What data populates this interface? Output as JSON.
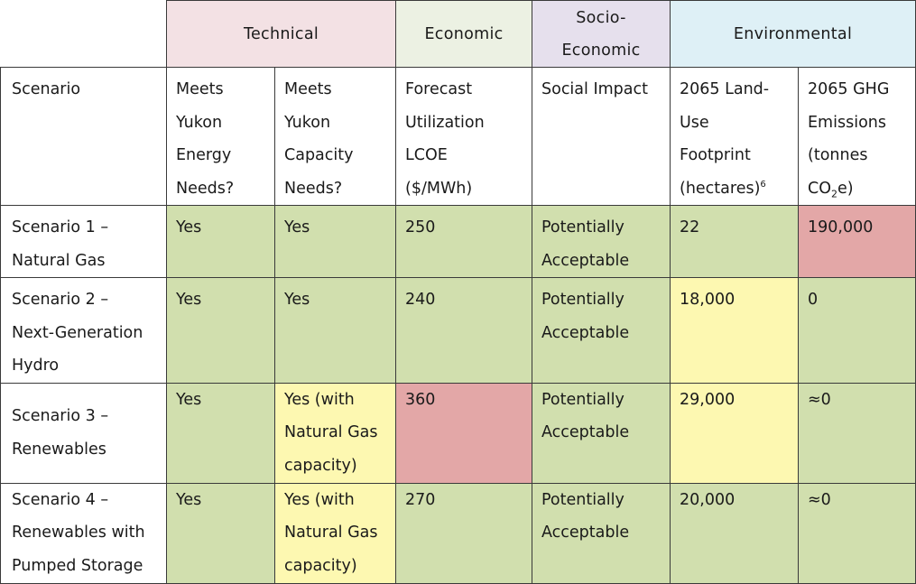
{
  "categories": {
    "technical": "Technical",
    "economic": "Economic",
    "socio_line1": "Socio-",
    "socio_line2": "Economic",
    "environmental": "Environmental"
  },
  "columns": {
    "scenario": "Scenario",
    "energy": [
      "Meets",
      "Yukon",
      "Energy",
      "Needs?"
    ],
    "capacity": [
      "Meets",
      "Yukon",
      "Capacity",
      "Needs?"
    ],
    "lcoe": [
      "Forecast",
      "Utilization",
      "LCOE",
      "($/MWh)"
    ],
    "social": "Social Impact",
    "land": [
      "2065 Land-",
      "Use",
      "Footprint",
      "(hectares)"
    ],
    "land_sup": "6",
    "ghg": [
      "2065 GHG",
      "Emissions",
      "(tonnes"
    ],
    "ghg_co": "CO",
    "ghg_sub": "2",
    "ghg_tail": "e)"
  },
  "rows": [
    {
      "scenario": [
        "Scenario 1 –",
        "Natural Gas"
      ],
      "energy": "Yes",
      "capacity": [
        "Yes"
      ],
      "lcoe": "250",
      "social": [
        "Potentially",
        "Acceptable"
      ],
      "land": "22",
      "ghg": "190,000"
    },
    {
      "scenario": [
        "Scenario 2 –",
        "Next-Generation",
        "Hydro"
      ],
      "energy": "Yes",
      "capacity": [
        "Yes"
      ],
      "lcoe": "240",
      "social": [
        "Potentially",
        "Acceptable"
      ],
      "land": "18,000",
      "ghg": "0"
    },
    {
      "scenario": [
        "Scenario 3 –",
        "Renewables"
      ],
      "energy": "Yes",
      "capacity": [
        "Yes (with",
        "Natural Gas",
        "capacity)"
      ],
      "lcoe": "360",
      "social": [
        "Potentially",
        "Acceptable"
      ],
      "land": "29,000",
      "ghg": "≈0"
    },
    {
      "scenario": [
        "Scenario 4 –",
        "Renewables with",
        "Pumped Storage"
      ],
      "energy": "Yes",
      "capacity": [
        "Yes (with",
        "Natural Gas",
        "capacity)"
      ],
      "lcoe": "270",
      "social": [
        "Potentially",
        "Acceptable"
      ],
      "land": "20,000",
      "ghg": "≈0"
    }
  ],
  "colors": {
    "technical_header": "#f3e1e4",
    "economic_header": "#ecf1e3",
    "socio_header": "#e6e0ed",
    "environmental_header": "#def0f6",
    "favourable": "#d1dfae",
    "moderate": "#fdf8b1",
    "unfavourable": "#e3a7a7"
  }
}
